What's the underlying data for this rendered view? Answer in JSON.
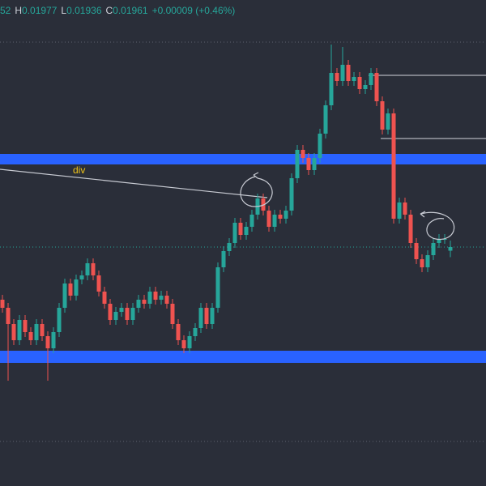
{
  "header": {
    "open_tail": "52",
    "high_letter": "H",
    "high": "0.01977",
    "low_letter": "L",
    "low": "0.01936",
    "close_letter": "C",
    "close": "0.01961",
    "change": "+0.00009 (+0.46%)"
  },
  "chart_data": {
    "type": "candlestick",
    "annotation": "div",
    "ylim": [
      0.01371,
      0.02571
    ],
    "up_color": "#26a69a",
    "down_color": "#ef5350",
    "open": [
      0.01831,
      0.01811,
      0.01771,
      0.01731,
      0.01781,
      0.01751,
      0.01731,
      0.01771,
      0.01741,
      0.01711,
      0.01751,
      0.01811,
      0.01871,
      0.01841,
      0.01881,
      0.01891,
      0.01921,
      0.01891,
      0.01851,
      0.01821,
      0.01781,
      0.01801,
      0.01811,
      0.01781,
      0.01811,
      0.01831,
      0.01821,
      0.01851,
      0.01831,
      0.01841,
      0.01821,
      0.01771,
      0.01731,
      0.01711,
      0.01741,
      0.01761,
      0.01811,
      0.01771,
      0.01811,
      0.01911,
      0.01951,
      0.01971,
      0.02021,
      0.01991,
      0.02011,
      0.02041,
      0.02081,
      0.02051,
      0.02011,
      0.02041,
      0.02031,
      0.02051,
      0.02131,
      0.02201,
      0.02181,
      0.02151,
      0.02181,
      0.02241,
      0.02311,
      0.02391,
      0.02371,
      0.02411,
      0.02371,
      0.02381,
      0.02351,
      0.02361,
      0.02391,
      0.02321,
      0.02251,
      0.02291,
      0.02031,
      0.02071,
      0.02041,
      0.01971,
      0.01931,
      0.01911,
      0.01941,
      0.01971,
      0.01981,
      0.01952
    ],
    "high": [
      0.01843,
      0.01823,
      0.01783,
      0.01793,
      0.01793,
      0.01763,
      0.01783,
      0.01783,
      0.01753,
      0.01763,
      0.01823,
      0.01883,
      0.01883,
      0.01893,
      0.01903,
      0.01933,
      0.01933,
      0.01903,
      0.01863,
      0.01833,
      0.01813,
      0.01823,
      0.01823,
      0.01823,
      0.01843,
      0.01843,
      0.01863,
      0.01863,
      0.01853,
      0.01853,
      0.01833,
      0.01783,
      0.01743,
      0.01753,
      0.01773,
      0.01823,
      0.01823,
      0.01823,
      0.01923,
      0.01963,
      0.01983,
      0.02033,
      0.02033,
      0.02023,
      0.02053,
      0.02093,
      0.02093,
      0.02063,
      0.02053,
      0.02053,
      0.02063,
      0.02143,
      0.02213,
      0.02213,
      0.02193,
      0.02193,
      0.02253,
      0.02323,
      0.02461,
      0.02403,
      0.02455,
      0.02423,
      0.02393,
      0.02393,
      0.02373,
      0.02403,
      0.02403,
      0.02333,
      0.02303,
      0.02303,
      0.02083,
      0.02083,
      0.02053,
      0.01983,
      0.01943,
      0.01953,
      0.01983,
      0.01993,
      0.01993,
      0.01977
    ],
    "low": [
      0.01799,
      0.01631,
      0.01719,
      0.01719,
      0.01739,
      0.01719,
      0.01719,
      0.01729,
      0.01631,
      0.01699,
      0.01739,
      0.01799,
      0.01829,
      0.01829,
      0.01869,
      0.01879,
      0.01879,
      0.01839,
      0.01809,
      0.01769,
      0.01769,
      0.01789,
      0.01769,
      0.01769,
      0.01799,
      0.01809,
      0.01809,
      0.01819,
      0.01819,
      0.01809,
      0.01759,
      0.01719,
      0.01699,
      0.01699,
      0.01729,
      0.01749,
      0.01759,
      0.01759,
      0.01799,
      0.01899,
      0.01939,
      0.01959,
      0.01979,
      0.01979,
      0.01999,
      0.02029,
      0.02039,
      0.01999,
      0.01999,
      0.02019,
      0.02019,
      0.02039,
      0.02119,
      0.02169,
      0.02139,
      0.02139,
      0.02169,
      0.02229,
      0.02299,
      0.02359,
      0.02359,
      0.02359,
      0.02359,
      0.02339,
      0.02339,
      0.02349,
      0.02309,
      0.02239,
      0.02239,
      0.02019,
      0.02019,
      0.02029,
      0.01959,
      0.01919,
      0.01899,
      0.01899,
      0.01929,
      0.01959,
      0.01969,
      0.01936
    ],
    "close": [
      0.01811,
      0.01771,
      0.01731,
      0.01781,
      0.01751,
      0.01731,
      0.01771,
      0.01741,
      0.01711,
      0.01751,
      0.01811,
      0.01871,
      0.01841,
      0.01881,
      0.01891,
      0.01921,
      0.01891,
      0.01851,
      0.01821,
      0.01781,
      0.01801,
      0.01811,
      0.01781,
      0.01811,
      0.01831,
      0.01821,
      0.01851,
      0.01831,
      0.01841,
      0.01821,
      0.01771,
      0.01731,
      0.01711,
      0.01741,
      0.01761,
      0.01811,
      0.01771,
      0.01811,
      0.01911,
      0.01951,
      0.01971,
      0.02021,
      0.01991,
      0.02011,
      0.02041,
      0.02081,
      0.02051,
      0.02011,
      0.02041,
      0.02031,
      0.02051,
      0.02131,
      0.02201,
      0.02181,
      0.02151,
      0.02181,
      0.02241,
      0.02311,
      0.02391,
      0.02371,
      0.02411,
      0.02371,
      0.02381,
      0.02351,
      0.02361,
      0.02391,
      0.02321,
      0.02251,
      0.02291,
      0.02031,
      0.02071,
      0.02041,
      0.01971,
      0.01931,
      0.01911,
      0.01941,
      0.01971,
      0.01981,
      0.01981,
      0.01961
    ]
  }
}
